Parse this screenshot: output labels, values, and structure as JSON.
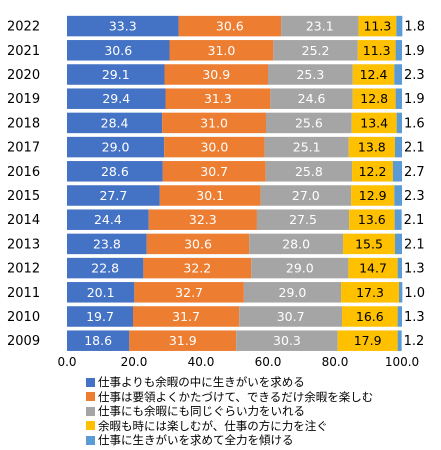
{
  "chart_data": {
    "type": "bar",
    "orientation": "horizontal",
    "stacked": true,
    "categories": [
      "2022",
      "2021",
      "2020",
      "2019",
      "2018",
      "2017",
      "2016",
      "2015",
      "2014",
      "2013",
      "2012",
      "2011",
      "2010",
      "2009"
    ],
    "series": [
      {
        "name": "仕事よりも余暇の中に生きがいを求める",
        "color": "#4472c4",
        "values": [
          33.3,
          30.6,
          29.1,
          29.4,
          28.4,
          29.0,
          28.6,
          27.7,
          24.4,
          23.8,
          22.8,
          20.1,
          19.7,
          18.6
        ],
        "labels": [
          "33.3",
          "30.6",
          "29.1",
          "29.4",
          "28.4",
          "29.0",
          "28.6",
          "27.7",
          "24.4",
          "23.8",
          "22.8",
          "20.1",
          "19.7",
          "18.6"
        ]
      },
      {
        "name": "仕事は要領よくかたづけて、できるだけ余暇を楽しむ",
        "color": "#ed7d31",
        "values": [
          30.6,
          31.0,
          30.9,
          31.3,
          31.0,
          30.0,
          30.7,
          30.1,
          32.3,
          30.6,
          32.2,
          32.7,
          31.7,
          31.9
        ],
        "labels": [
          "30.6",
          "31.0",
          "30.9",
          "31.3",
          "31.0",
          "30.0",
          "30.7",
          "30.1",
          "32.3",
          "30.6",
          "32.2",
          "32.7",
          "31.7",
          "31.9"
        ]
      },
      {
        "name": "仕事にも余暇にも同じぐらい力をいれる",
        "color": "#a5a5a5",
        "values": [
          23.1,
          25.2,
          25.3,
          24.6,
          25.6,
          25.1,
          25.8,
          27.0,
          27.5,
          28.0,
          29.0,
          29.0,
          30.7,
          30.3
        ],
        "labels": [
          "23.1",
          "25.2",
          "25.3",
          "24.6",
          "25.6",
          "25.1",
          "25.8",
          "27.0",
          "27.5",
          "28.0",
          "29.0",
          "29.0",
          "30.7",
          "30.3"
        ]
      },
      {
        "name": "余暇も時には楽しむが、仕事の方に力を注ぐ",
        "color": "#ffc000",
        "values": [
          11.3,
          11.3,
          12.4,
          12.8,
          13.4,
          13.8,
          12.2,
          12.9,
          13.6,
          15.5,
          14.7,
          17.3,
          16.6,
          17.9
        ],
        "labels": [
          "11.3",
          "11.3",
          "12.4",
          "12.8",
          "13.4",
          "13.8",
          "12.2",
          "12.9",
          "13.6",
          "15.5",
          "14.7",
          "17.3",
          "16.6",
          "17.9"
        ]
      },
      {
        "name": "仕事に生きがいを求めて全力を傾ける",
        "color": "#5b9bd5",
        "values": [
          1.8,
          1.9,
          2.3,
          1.9,
          1.6,
          2.1,
          2.7,
          2.3,
          2.1,
          2.1,
          1.3,
          1.0,
          1.3,
          1.2
        ],
        "labels": [
          "1.8",
          "1.9",
          "2.3",
          "1.9",
          "1.6",
          "2.1",
          "2.7",
          "2.3",
          "2.1",
          "2.1",
          "1.3",
          "1.0",
          "1.3",
          "1.2"
        ]
      }
    ],
    "xlim": [
      0,
      100
    ],
    "xticks": [
      "0.0",
      "20.0",
      "40.0",
      "60.0",
      "80.0",
      "100.0"
    ],
    "title": "",
    "xlabel": "",
    "ylabel": "",
    "grid": false,
    "legend_position": "bottom"
  }
}
